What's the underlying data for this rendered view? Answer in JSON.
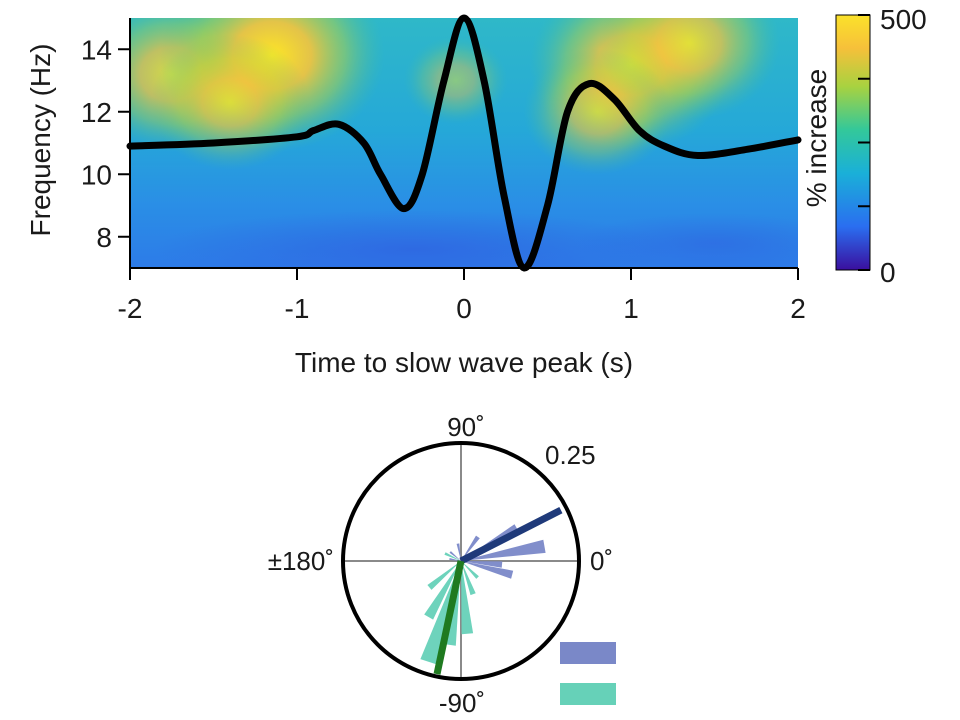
{
  "chart_data": [
    {
      "type": "heatmap",
      "title": "",
      "xlabel": "Time to slow wave peak (s)",
      "ylabel": "Frequency (Hz)",
      "xlim": [
        -2,
        2
      ],
      "ylim": [
        7,
        15
      ],
      "x_ticks": [
        "-2",
        "-1",
        "0",
        "1",
        "2"
      ],
      "y_ticks": [
        "8",
        "10",
        "12",
        "14"
      ],
      "colorbar": {
        "label": "% increase",
        "range": [
          0,
          500
        ],
        "tick_labels": [
          "0",
          "500"
        ],
        "colors": [
          "#3a0f9e",
          "#2a6ef0",
          "#1ab0d8",
          "#33c89a",
          "#a8d240",
          "#f6c03a",
          "#fbe22a"
        ]
      },
      "hot_spots": [
        {
          "t": -1.75,
          "f": 13.2,
          "amp": 0.55
        },
        {
          "t": -1.15,
          "f": 13.8,
          "amp": 0.75
        },
        {
          "t": -1.4,
          "f": 12.3,
          "amp": 0.45
        },
        {
          "t": 1.0,
          "f": 13.5,
          "amp": 0.65
        },
        {
          "t": 1.35,
          "f": 14.2,
          "amp": 0.55
        },
        {
          "t": 0.8,
          "f": 12.0,
          "amp": 0.4
        },
        {
          "t": -0.05,
          "f": 13.0,
          "amp": 0.2
        }
      ],
      "slow_wave_trace": {
        "t": [
          -2.0,
          -1.5,
          -1.0,
          -0.9,
          -0.75,
          -0.6,
          -0.5,
          -0.36,
          -0.25,
          -0.12,
          0.0,
          0.12,
          0.24,
          0.36,
          0.5,
          0.62,
          0.75,
          0.9,
          1.05,
          1.2,
          1.4,
          1.7,
          2.0
        ],
        "f": [
          10.9,
          11.0,
          11.2,
          11.4,
          11.6,
          11.0,
          10.0,
          8.9,
          10.0,
          13.0,
          15.0,
          13.0,
          9.3,
          7.0,
          9.0,
          12.0,
          12.9,
          12.4,
          11.4,
          10.9,
          10.6,
          10.8,
          11.1
        ],
        "color": "#000000"
      }
    },
    {
      "type": "polar",
      "angle_labels": [
        "90˚",
        "0˚",
        "-90˚",
        "±180˚"
      ],
      "radial_label": "0.25",
      "series": [
        {
          "color": "#7a88c8",
          "mean_color": "#1f3a7a",
          "mean_angle": 27,
          "mean_length": 0.95,
          "bins": [
            {
              "angle": 10,
              "r": 0.72
            },
            {
              "angle": 30,
              "r": 0.55
            },
            {
              "angle": -15,
              "r": 0.45
            },
            {
              "angle": -5,
              "r": 0.35
            },
            {
              "angle": 55,
              "r": 0.25
            },
            {
              "angle": 100,
              "r": 0.15
            },
            {
              "angle": 140,
              "r": 0.12
            },
            {
              "angle": 170,
              "r": 0.1
            }
          ]
        },
        {
          "color": "#66d1b8",
          "mean_color": "#1f7a20",
          "mean_angle": -102,
          "mean_length": 0.98,
          "bins": [
            {
              "angle": -108,
              "r": 0.9
            },
            {
              "angle": -98,
              "r": 0.72
            },
            {
              "angle": -120,
              "r": 0.55
            },
            {
              "angle": -85,
              "r": 0.62
            },
            {
              "angle": -140,
              "r": 0.35
            },
            {
              "angle": -70,
              "r": 0.3
            },
            {
              "angle": -45,
              "r": 0.2
            },
            {
              "angle": 155,
              "r": 0.15
            }
          ]
        }
      ]
    }
  ]
}
